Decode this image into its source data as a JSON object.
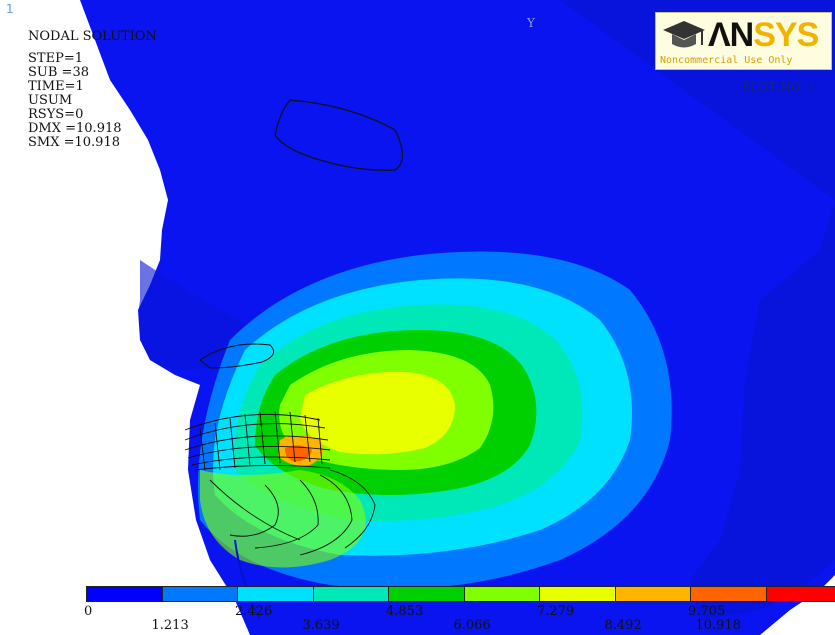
{
  "window_number": "1",
  "info": {
    "title": "NODAL SOLUTION",
    "step": "STEP=1",
    "sub": "SUB =38",
    "time": "TIME=1",
    "quantity": "USUM",
    "rsys": "RSYS=0",
    "dmx": "DMX =10.918",
    "smx": "SMX =10.918"
  },
  "plot_label": "PLOT NO. 1",
  "axis_label": "Y",
  "logo": {
    "word_a": "ΛN",
    "word_b": "SYS",
    "subtitle": "Noncommercial Use Only"
  },
  "legend": {
    "labels_top": [
      "0",
      "2.426",
      "4.853",
      "7.279",
      "9.705"
    ],
    "labels_bottom": [
      "1.213",
      "3.639",
      "6.066",
      "8.492",
      "10.918"
    ],
    "colors": [
      "#0000ff",
      "#0078ff",
      "#00e0ff",
      "#00e8b8",
      "#00d000",
      "#80ff00",
      "#e8ff00",
      "#ffb400",
      "#ff6400",
      "#ff0000"
    ]
  }
}
